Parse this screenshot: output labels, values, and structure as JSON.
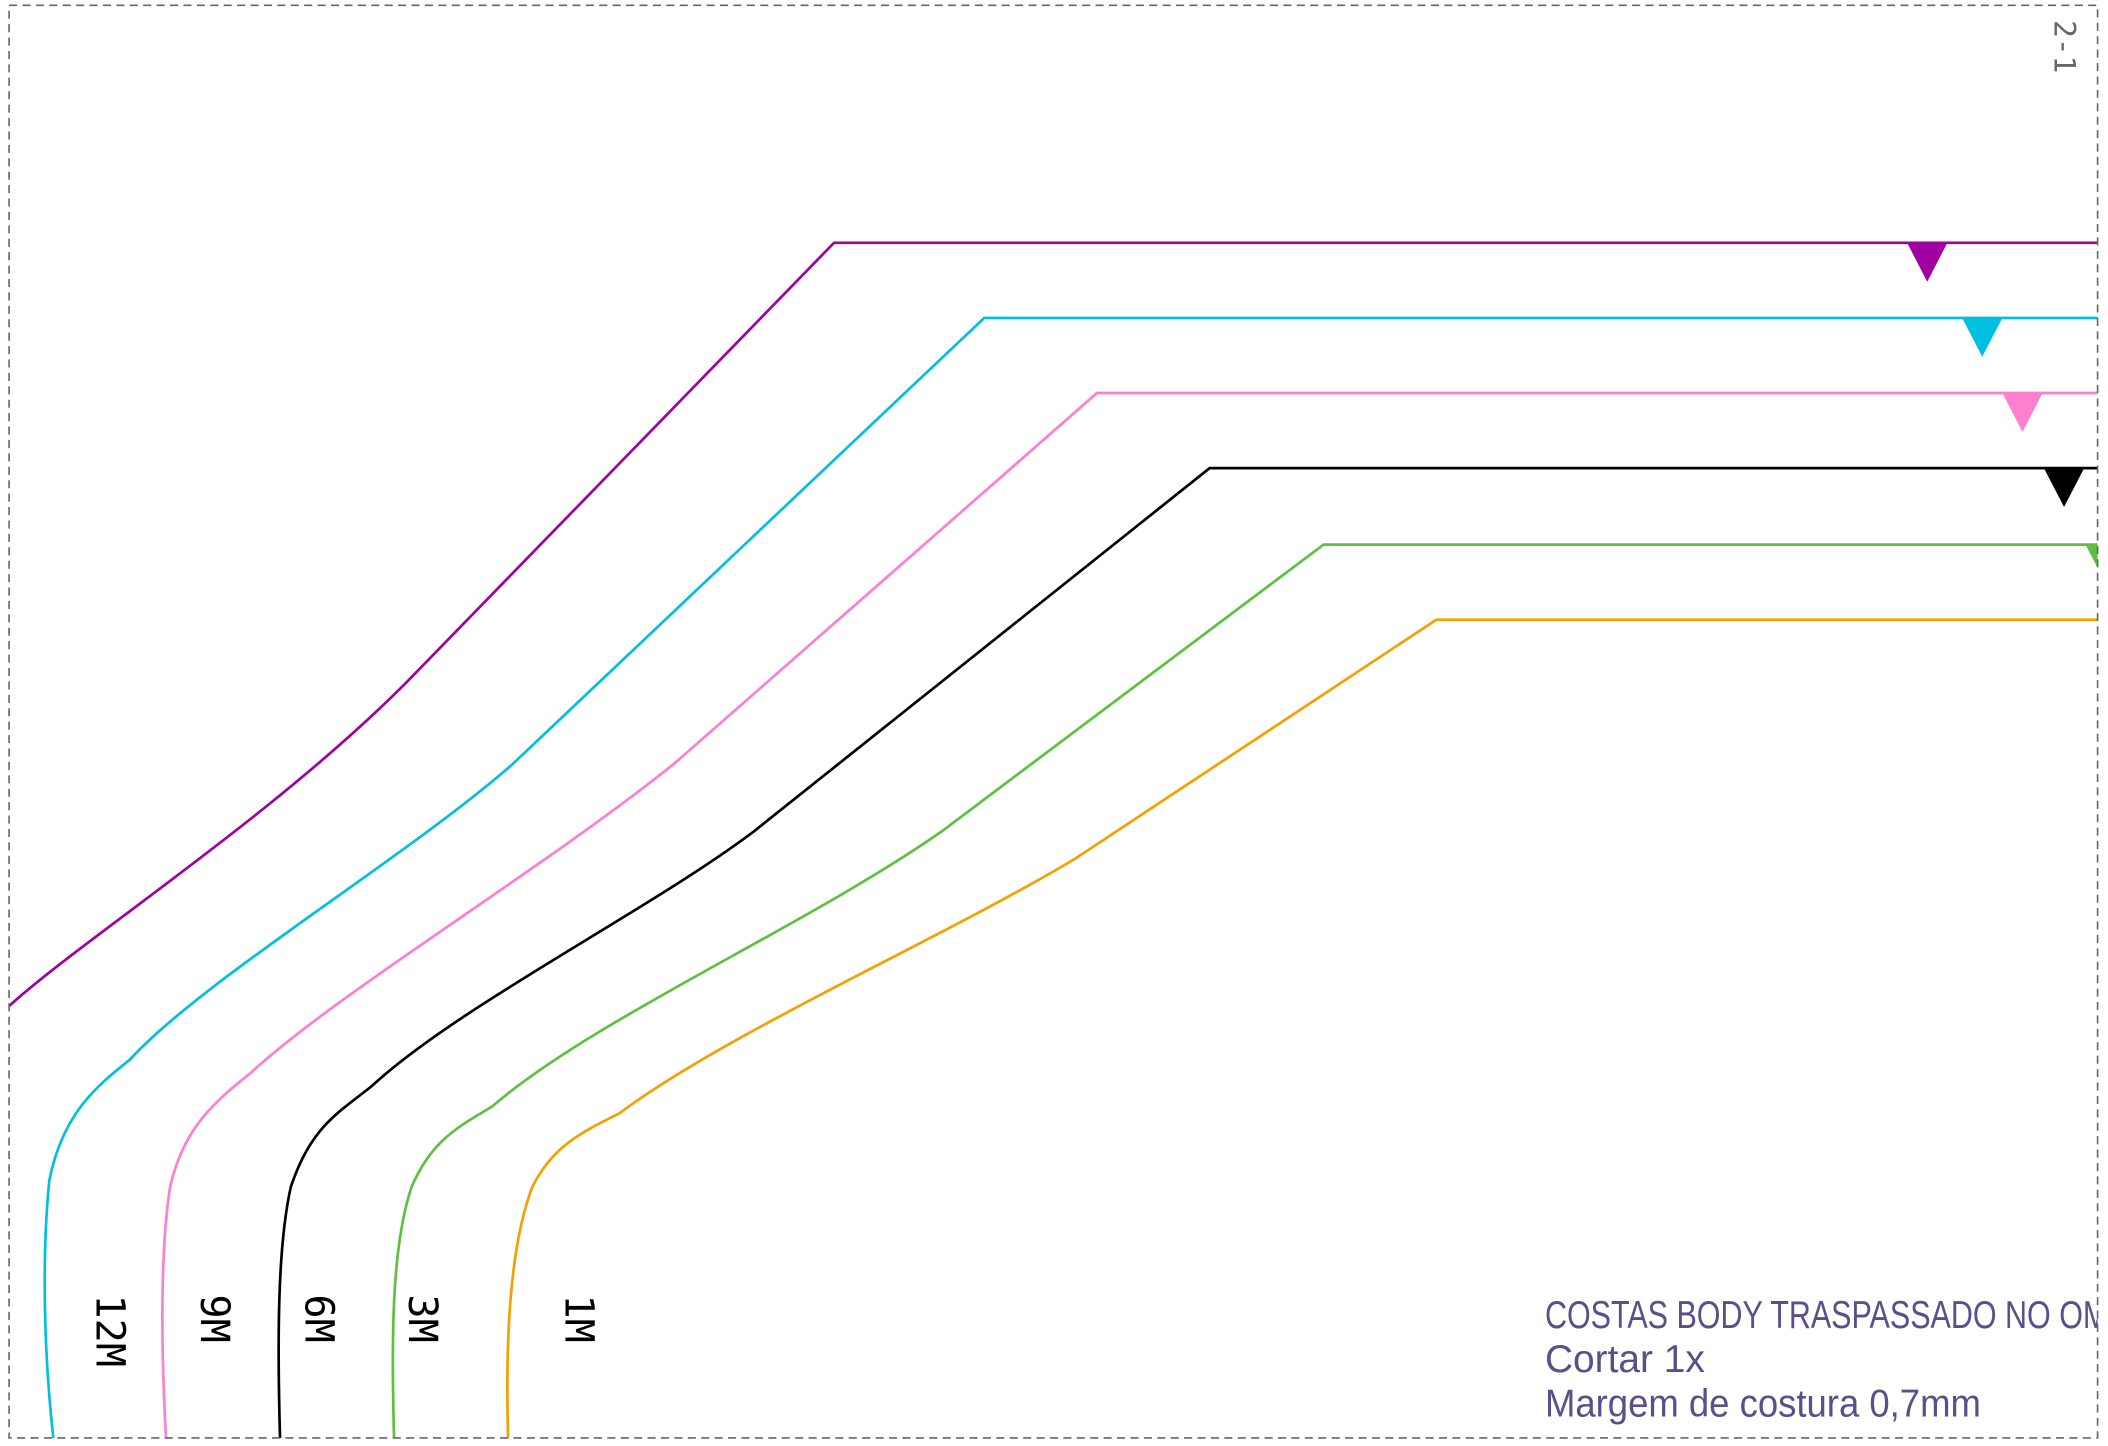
{
  "page_label": "2-1",
  "sizes": [
    "12M",
    "9M",
    "6M",
    "3M",
    "1M"
  ],
  "info": {
    "lines": [
      "COSTAS BODY TRASPASSADO NO OM",
      "Cortar 1x",
      "Margem de costura 0,7mm"
    ]
  }
}
